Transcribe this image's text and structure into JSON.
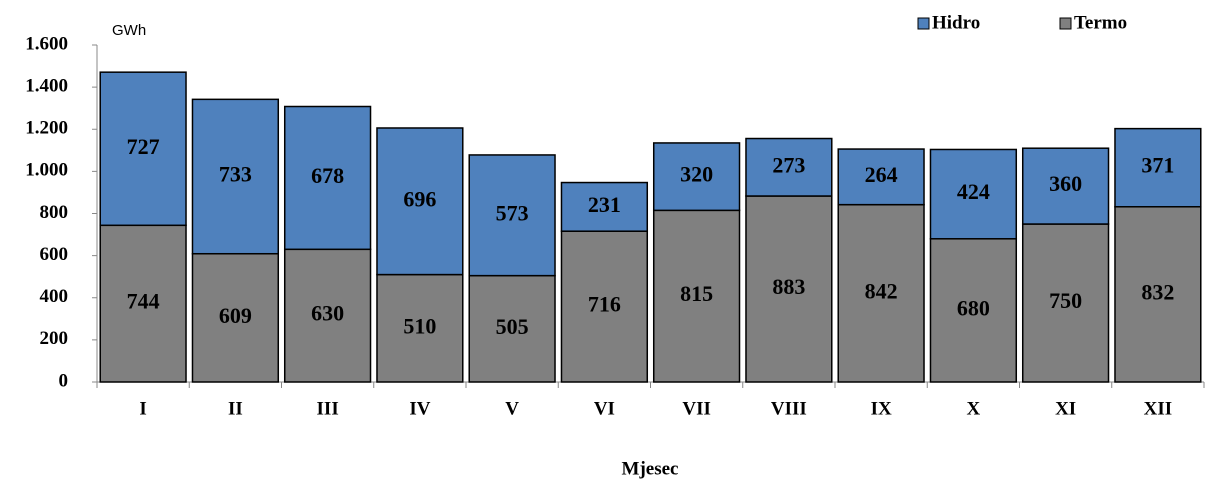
{
  "chart_data": {
    "type": "stacked_bar",
    "y_unit": "GWh",
    "x_label": "Mjesec",
    "categories": [
      "I",
      "II",
      "III",
      "IV",
      "V",
      "VI",
      "VII",
      "VIII",
      "IX",
      "X",
      "XI",
      "XII"
    ],
    "series": [
      {
        "name": "Termo",
        "color": "#808080",
        "values": [
          744,
          609,
          630,
          510,
          505,
          716,
          815,
          883,
          842,
          680,
          750,
          832
        ]
      },
      {
        "name": "Hidro",
        "color": "#4f81bd",
        "values": [
          727,
          733,
          678,
          696,
          573,
          231,
          320,
          273,
          264,
          424,
          360,
          371
        ]
      }
    ],
    "ylim": [
      0,
      1600
    ],
    "yticks": [
      0,
      200,
      400,
      600,
      800,
      {
        "value": 1000,
        "label": "1.000"
      },
      {
        "value": 1200,
        "label": "1.200"
      },
      {
        "value": 1400,
        "label": "1.400"
      },
      {
        "value": 1600,
        "label": "1.600"
      }
    ],
    "legend_position": "top-right"
  }
}
